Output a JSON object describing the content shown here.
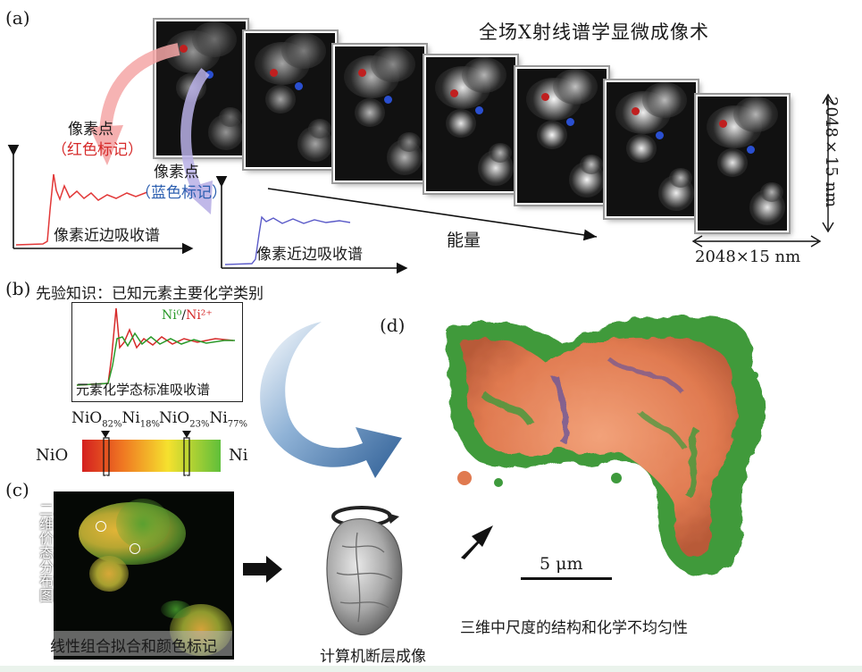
{
  "panel_labels": {
    "a": "(a)",
    "b": "(b)",
    "c": "(c)",
    "d": "(d)"
  },
  "panel_a": {
    "title": "全场X射线谱学显微成像术",
    "pixel_red": {
      "line1": "像素点",
      "line2": "（红色标记）"
    },
    "pixel_blue": {
      "line1": "像素点",
      "line2": "（蓝色标记）"
    },
    "spectrum_label": "像素近边吸收谱",
    "energy_label": "能量",
    "dim_vertical": "2048×15 nm",
    "dim_horizontal": "2048×15 nm",
    "frame_count": 7,
    "frame_brightness": [
      0.35,
      0.45,
      0.55,
      0.85,
      0.95,
      0.9,
      0.85
    ],
    "colors": {
      "red": "#d62a2a",
      "blue": "#2c5fb0",
      "red_arrow": "#f4a6a6",
      "blue_arrow": "#b9b0e6"
    }
  },
  "panel_b": {
    "prior_knowledge": "先验知识：已知元素主要化学类别",
    "legend_ni0": "Ni⁰",
    "legend_sep": "/",
    "legend_ni2": "Ni²⁺",
    "standard_spectra_label": "元素化学态标准吸收谱",
    "composition_1": {
      "a": "NiO",
      "a_sub": "82%",
      "b": "Ni",
      "b_sub": "18%"
    },
    "composition_2": {
      "a": "NiO",
      "a_sub": "23%",
      "b": "Ni",
      "b_sub": "77%"
    },
    "scale_left": "NiO",
    "scale_right": "Ni",
    "colors": {
      "ni0": "#2a9a2a",
      "ni2": "#d62a2a"
    }
  },
  "panel_c": {
    "map_label": "二维价态分布图",
    "fit_label": "线性组合拟合和颜色标记",
    "ct_label": "计算机断层成像"
  },
  "panel_d": {
    "scale_bar": "5 μm",
    "caption": "三维中尺度的结构和化学不均匀性",
    "colors": {
      "orange": "#e8875e",
      "green": "#3e9a3c",
      "purple": "#5a4fa0"
    }
  }
}
